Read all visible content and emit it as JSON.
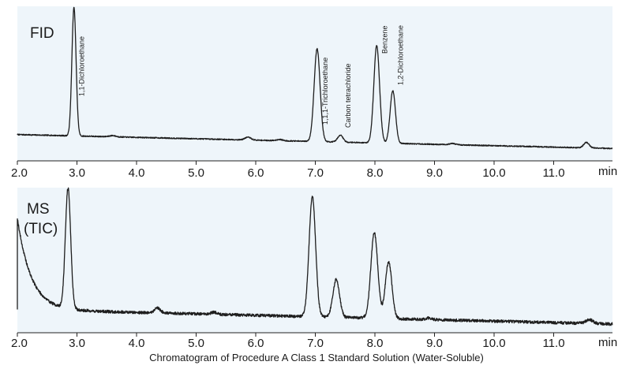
{
  "caption": "Chromatogram of Procedure A Class 1 Standard Solution (Water-Soluble)",
  "colors": {
    "panel_bg": "#eef5fa",
    "trace": "#1e1e1e",
    "axis": "#222222",
    "text": "#1a1a1a"
  },
  "chart_data": [
    {
      "type": "line",
      "panel_label": "FID",
      "x_unit_label": "min",
      "xlim": [
        2.0,
        12.0
      ],
      "x_ticks": [
        "2.0",
        "3.0",
        "4.0",
        "5.0",
        "6.0",
        "7.0",
        "8.0",
        "9.0",
        "10.0",
        "11.0"
      ],
      "ylim": [
        0,
        100
      ],
      "baseline": {
        "x": [
          2.0,
          12.0
        ],
        "y": [
          17,
          8
        ]
      },
      "noise_amplitude": 0.35,
      "peaks": [
        {
          "name": "1,1-Dichloroethane",
          "rt": 2.95,
          "height": 83,
          "width": 0.035
        },
        {
          "name": "",
          "rt": 3.6,
          "height": 0.8,
          "width": 0.05
        },
        {
          "name": "",
          "rt": 5.87,
          "height": 1.8,
          "width": 0.05
        },
        {
          "name": "",
          "rt": 6.4,
          "height": 0.8,
          "width": 0.05
        },
        {
          "name": "1,1,1-Trichloroethane",
          "rt": 7.03,
          "height": 60,
          "width": 0.05
        },
        {
          "name": "Carbon tetrachloride",
          "rt": 7.42,
          "height": 4.5,
          "width": 0.045
        },
        {
          "name": "Benzene",
          "rt": 8.03,
          "height": 63,
          "width": 0.048
        },
        {
          "name": "1,2-Dichloroethane",
          "rt": 8.3,
          "height": 34,
          "width": 0.045
        },
        {
          "name": "",
          "rt": 9.3,
          "height": 0.8,
          "width": 0.05
        },
        {
          "name": "",
          "rt": 11.55,
          "height": 3.5,
          "width": 0.045
        }
      ],
      "peak_labels": [
        {
          "text": "1,1-Dichloroethane",
          "x": 2.95
        },
        {
          "text": "1,1,1-Trichloroethane",
          "x": 7.03
        },
        {
          "text": "Carbon tetrachloride",
          "x": 7.42
        },
        {
          "text": "Benzene",
          "x": 8.03
        },
        {
          "text": "1,2-Dichloroethane",
          "x": 8.3
        }
      ]
    },
    {
      "type": "line",
      "panel_label": "MS",
      "panel_label_2": "(TIC)",
      "x_unit_label": "min",
      "xlim": [
        2.0,
        12.0
      ],
      "x_ticks": [
        "2.0",
        "3.0",
        "4.0",
        "5.0",
        "6.0",
        "7.0",
        "8.0",
        "9.0",
        "10.0",
        "11.0"
      ],
      "ylim": [
        0,
        100
      ],
      "baseline": {
        "x": [
          2.0,
          12.0
        ],
        "y": [
          16,
          6
        ]
      },
      "initial_decay": {
        "start_x": 2.0,
        "amplitude": 63,
        "tau": 0.23
      },
      "noise_amplitude": 1.0,
      "peaks": [
        {
          "name": "",
          "rt": 2.85,
          "height": 83,
          "width": 0.045
        },
        {
          "name": "",
          "rt": 4.35,
          "height": 3.5,
          "width": 0.05
        },
        {
          "name": "",
          "rt": 5.3,
          "height": 1.5,
          "width": 0.05
        },
        {
          "name": "1,1,1-Trichloroethane",
          "rt": 6.95,
          "height": 83,
          "width": 0.055
        },
        {
          "name": "Carbon tetrachloride",
          "rt": 7.35,
          "height": 26,
          "width": 0.055
        },
        {
          "name": "Benzene",
          "rt": 7.99,
          "height": 59,
          "width": 0.058
        },
        {
          "name": "1,2-Dichloroethane",
          "rt": 8.23,
          "height": 39,
          "width": 0.055
        },
        {
          "name": "",
          "rt": 8.9,
          "height": 1.0,
          "width": 0.05
        },
        {
          "name": "",
          "rt": 11.6,
          "height": 2.5,
          "width": 0.06
        }
      ],
      "peak_labels": []
    }
  ]
}
